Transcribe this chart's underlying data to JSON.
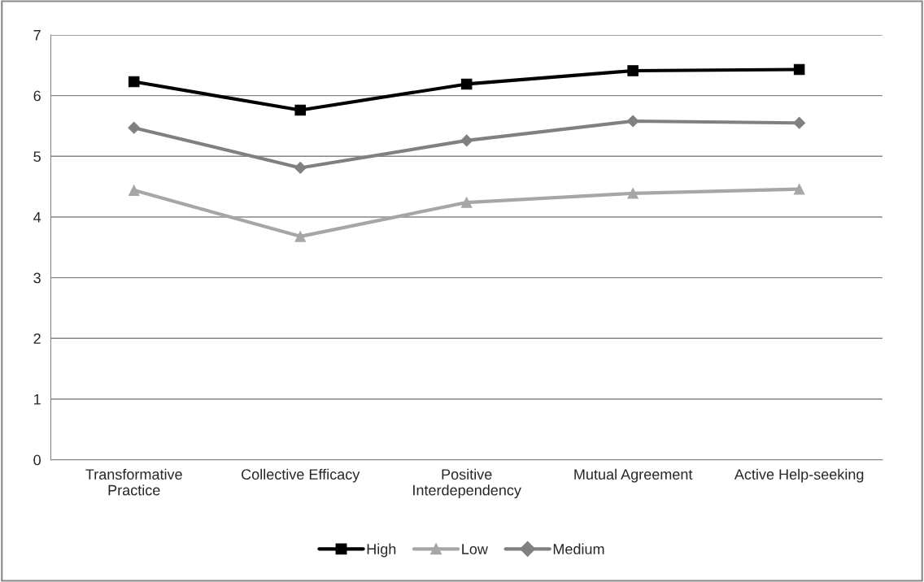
{
  "chart_data": {
    "type": "line",
    "categories": [
      "Transformative\nPractice",
      "Collective Efficacy",
      "Positive\nInterdependency",
      "Mutual Agreement",
      "Active Help-seeking"
    ],
    "series": [
      {
        "name": "High",
        "color": "#000000",
        "marker": "square",
        "values": [
          6.23,
          5.76,
          6.19,
          6.41,
          6.43
        ]
      },
      {
        "name": "Low",
        "color": "#a6a6a6",
        "marker": "triangle",
        "values": [
          4.44,
          3.68,
          4.24,
          4.39,
          4.46
        ]
      },
      {
        "name": "Medium",
        "color": "#808080",
        "marker": "diamond",
        "values": [
          5.47,
          4.81,
          5.26,
          5.58,
          5.55
        ]
      }
    ],
    "ylim": [
      0,
      7
    ],
    "yticks": [
      0,
      1,
      2,
      3,
      4,
      5,
      6,
      7
    ],
    "grid": "y",
    "legend": "bottom",
    "line_style": "solid"
  }
}
